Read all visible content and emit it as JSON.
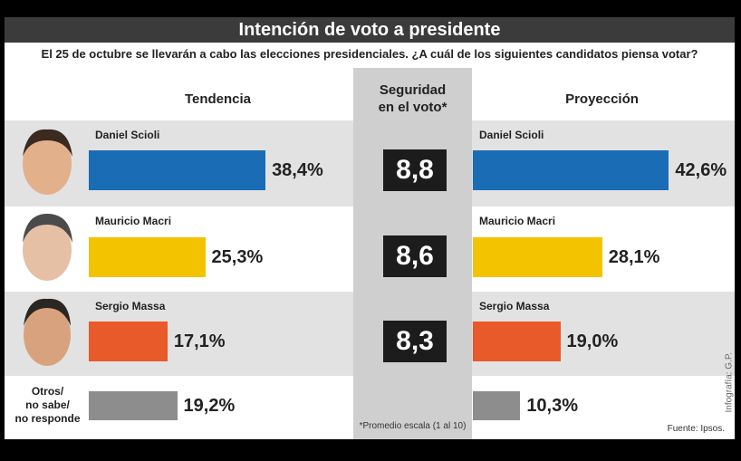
{
  "title": "Intención de voto a presidente",
  "subtitle": "El 25 de octubre se llevarán a cabo las elecciones presidenciales. ¿A cuál de los siguientes candidatos piensa votar?",
  "security": {
    "header": "Seguridad\nen el voto*",
    "values": [
      8.8,
      8.6,
      8.3
    ],
    "value_labels": [
      "8,8",
      "8,6",
      "8,3"
    ],
    "note": "*Promedio escala (1 al 10)"
  },
  "credit": "Infografía: G.P.",
  "source": "Fuente: Ipsos.",
  "chart_data": [
    {
      "type": "bar",
      "title": "Tendencia",
      "categories": [
        "Daniel Scioli",
        "Mauricio Macri",
        "Sergio Massa",
        "Otros/\nno sabe/\nno responde"
      ],
      "values": [
        38.4,
        25.3,
        17.1,
        19.2
      ],
      "value_labels": [
        "38,4%",
        "25,3%",
        "17,1%",
        "19,2%"
      ],
      "colors": [
        "#1a6db5",
        "#f3c300",
        "#e85a2a",
        "#8d8d8d"
      ]
    },
    {
      "type": "bar",
      "title": "Proyección",
      "categories": [
        "Daniel Scioli",
        "Mauricio Macri",
        "Sergio Massa",
        null
      ],
      "values": [
        42.6,
        28.1,
        19.0,
        10.3
      ],
      "value_labels": [
        "42,6%",
        "28,1%",
        "19,0%",
        "10,3%"
      ],
      "colors": [
        "#1a6db5",
        "#f3c300",
        "#e85a2a",
        "#8d8d8d"
      ]
    }
  ]
}
